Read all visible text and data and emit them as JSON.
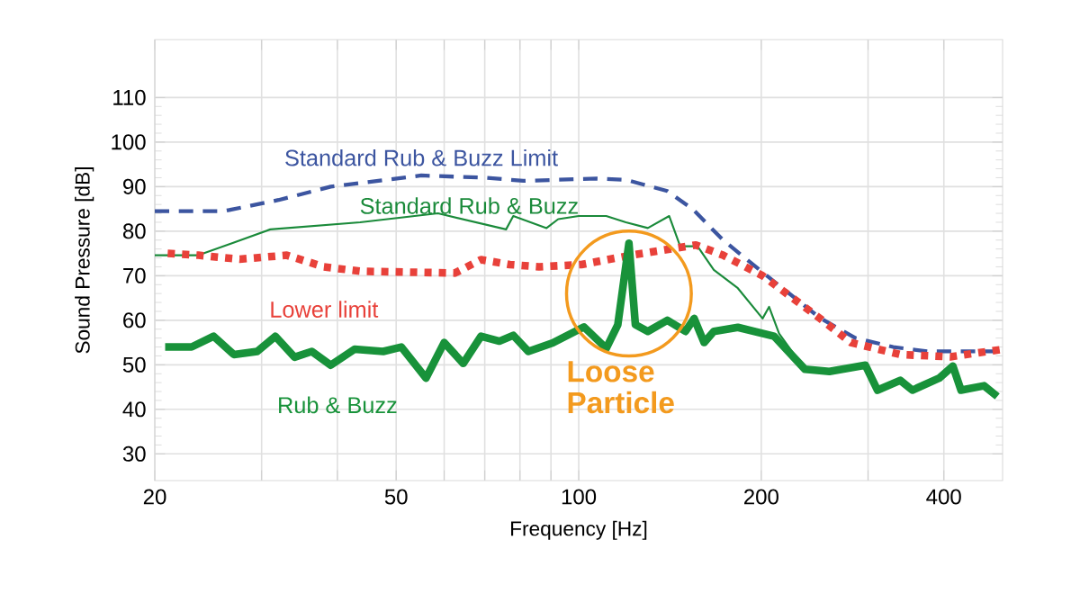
{
  "chart_data": {
    "type": "line",
    "xlabel": "Frequency [Hz]",
    "ylabel": "Sound Pressure [dB]",
    "log": "x",
    "grid": true,
    "legend": false,
    "xlim": [
      20,
      500
    ],
    "ylim": [
      24,
      123
    ],
    "xticks": [
      20,
      {
        "value": 30,
        "label": null
      },
      {
        "value": 40,
        "label": null
      },
      50,
      {
        "value": 60,
        "label": null
      },
      {
        "value": 70,
        "label": null
      },
      {
        "value": 80,
        "label": null
      },
      {
        "value": 90,
        "label": null
      },
      100,
      200,
      {
        "value": 300,
        "label": null
      },
      400
    ],
    "yticks": [
      30,
      40,
      50,
      60,
      70,
      80,
      90,
      100,
      110
    ],
    "series": [
      {
        "name": "Standard Rub & Buzz Limit",
        "color": "#3c55a0",
        "line_style": "dashed",
        "x": [
          20,
          26,
          32,
          39,
          55,
          70,
          81,
          107,
          120,
          140,
          154,
          173,
          200,
          250,
          286,
          330,
          376,
          420,
          500
        ],
        "values": [
          84.5,
          84.5,
          87,
          90,
          92.5,
          92,
          91.3,
          91.8,
          91.5,
          89,
          85,
          78,
          71,
          60.5,
          56,
          54,
          53,
          53,
          53
        ]
      },
      {
        "name": "Standard Rub & Buzz",
        "color": "#1a8a3a",
        "line_style": "solid",
        "x": [
          20,
          23.6,
          31,
          43.6,
          58.6,
          75.9,
          78,
          88.5,
          92.5,
          100,
          111,
          119.6,
          130,
          141,
          147,
          157,
          167,
          183,
          201,
          206,
          214,
          236
        ],
        "values": [
          74.6,
          74.6,
          80.4,
          82,
          84,
          80.4,
          83.4,
          80.7,
          82.7,
          83.4,
          83.4,
          82,
          80.7,
          83.4,
          76.6,
          76.6,
          71.3,
          67.2,
          60.4,
          63,
          57,
          49
        ]
      },
      {
        "name": "Lower limit",
        "color": "#e8413a",
        "line_style": "dotted",
        "x": [
          21,
          23.6,
          27.6,
          33,
          38,
          43.6,
          62.5,
          69,
          77,
          86,
          101,
          122,
          156,
          173,
          201,
          250,
          281,
          339,
          410,
          496
        ],
        "values": [
          75,
          74.6,
          73.7,
          74.6,
          72,
          71,
          70.6,
          73.6,
          72.5,
          72,
          72.5,
          74.6,
          76.9,
          74.6,
          70,
          60.4,
          55,
          52.3,
          51.8,
          53.4
        ]
      },
      {
        "name": "Rub & Buzz",
        "color": "#18923a",
        "line_style": "solid",
        "x": [
          20.8,
          23,
          25,
          27,
          29.5,
          31.6,
          34,
          36.3,
          39,
          42.7,
          47.6,
          51,
          56,
          60,
          64.5,
          69,
          74,
          78,
          82.6,
          90.6,
          102,
          111,
          116,
          121,
          124,
          130,
          140,
          150,
          155,
          161,
          167,
          183,
          210,
          236,
          259,
          297,
          311,
          339,
          355,
          393,
          414,
          427,
          466,
          490
        ],
        "values": [
          54,
          54,
          56.4,
          52.3,
          53,
          56.4,
          51.7,
          53,
          49.9,
          53.5,
          53,
          54,
          47,
          55,
          50.3,
          56.4,
          55.3,
          56.6,
          53,
          54.9,
          58.5,
          53.7,
          59,
          77.3,
          59,
          57.5,
          60,
          57.5,
          60.4,
          55,
          57.5,
          58.4,
          56.4,
          49,
          48.5,
          49.9,
          44.3,
          46.5,
          44.3,
          47,
          49.7,
          44.3,
          45.3,
          42.9
        ]
      }
    ],
    "annotations": [
      {
        "text": "Loose Particle",
        "x": 121,
        "y": 66
      }
    ]
  }
}
